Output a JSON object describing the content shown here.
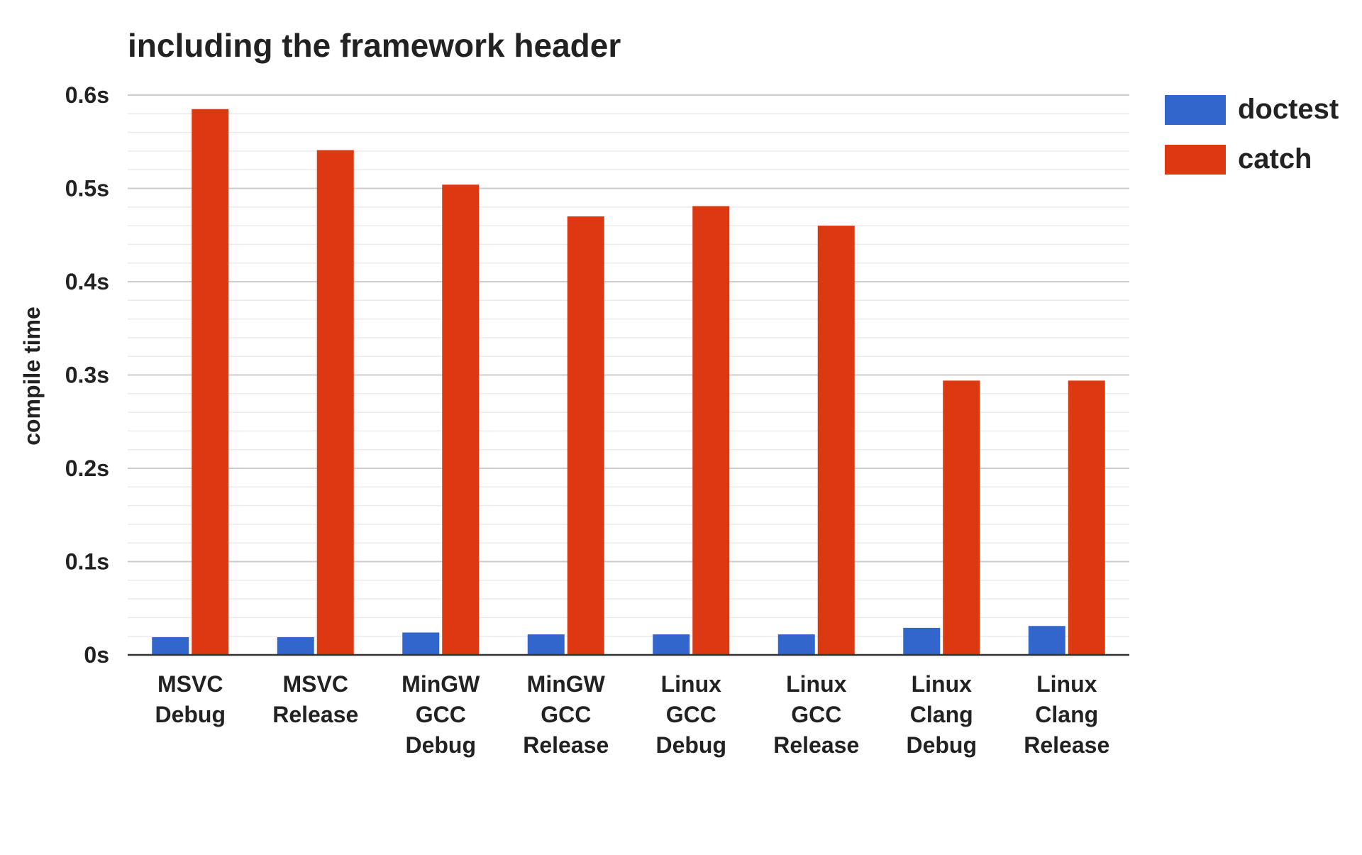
{
  "chart_data": {
    "type": "bar",
    "title": "including the framework header",
    "xlabel": "",
    "ylabel": "compile time",
    "ylim": [
      0,
      0.6
    ],
    "yticks": [
      0,
      0.1,
      0.2,
      0.3,
      0.4,
      0.5,
      0.6
    ],
    "ytick_labels": [
      "0s",
      "0.1s",
      "0.2s",
      "0.3s",
      "0.4s",
      "0.5s",
      "0.6s"
    ],
    "minor_grid_step": 0.02,
    "grid": true,
    "legend_position": "top-right",
    "categories": [
      [
        "MSVC",
        "Debug"
      ],
      [
        "MSVC",
        "Release"
      ],
      [
        "MinGW",
        "GCC",
        "Debug"
      ],
      [
        "MinGW",
        "GCC",
        "Release"
      ],
      [
        "Linux",
        "GCC",
        "Debug"
      ],
      [
        "Linux",
        "GCC",
        "Release"
      ],
      [
        "Linux",
        "Clang",
        "Debug"
      ],
      [
        "Linux",
        "Clang",
        "Release"
      ]
    ],
    "series": [
      {
        "name": "doctest",
        "color": "#3366cc",
        "values": [
          0.019,
          0.019,
          0.024,
          0.022,
          0.022,
          0.022,
          0.029,
          0.031
        ]
      },
      {
        "name": "catch",
        "color": "#dc3912",
        "values": [
          0.585,
          0.541,
          0.504,
          0.47,
          0.481,
          0.46,
          0.294,
          0.294
        ]
      }
    ]
  }
}
